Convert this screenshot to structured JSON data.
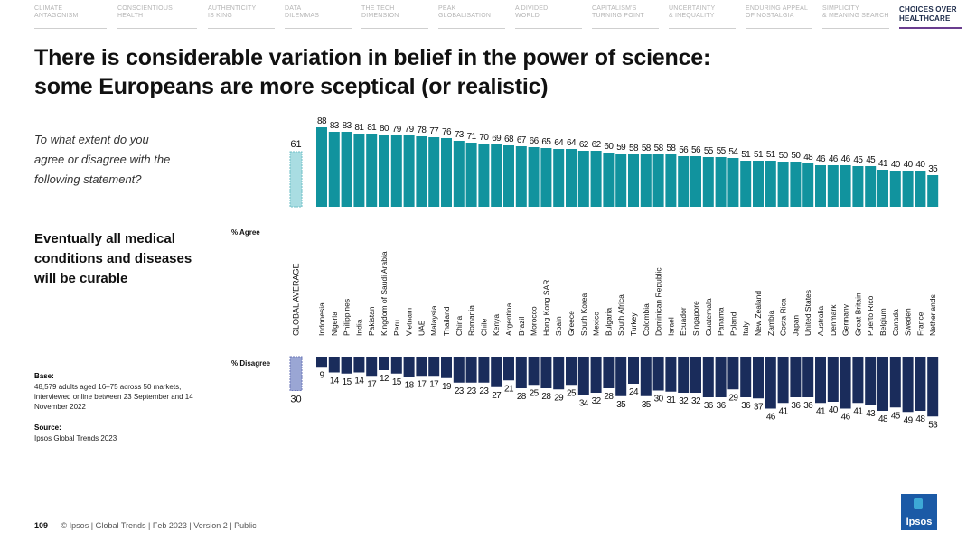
{
  "nav": [
    {
      "line1": "CLIMATE",
      "line2": "ANTAGONISM",
      "active": false
    },
    {
      "line1": "CONSCIENTIOUS",
      "line2": "HEALTH",
      "active": false
    },
    {
      "line1": "AUTHENTICITY",
      "line2": "IS KING",
      "active": false
    },
    {
      "line1": "DATA",
      "line2": "DILEMMAS",
      "active": false
    },
    {
      "line1": "THE TECH",
      "line2": "DIMENSION",
      "active": false
    },
    {
      "line1": "PEAK",
      "line2": "GLOBALISATION",
      "active": false
    },
    {
      "line1": "A DIVIDED",
      "line2": "WORLD",
      "active": false
    },
    {
      "line1": "CAPITALISM'S",
      "line2": "TURNING POINT",
      "active": false
    },
    {
      "line1": "UNCERTAINTY",
      "line2": "& INEQUALITY",
      "active": false
    },
    {
      "line1": "ENDURING APPEAL",
      "line2": "OF NOSTALGIA",
      "active": false
    },
    {
      "line1": "SIMPLICITY",
      "line2": "& MEANING SEARCH",
      "active": false
    },
    {
      "line1": "CHOICES OVER",
      "line2": "HEALTHCARE",
      "active": true
    }
  ],
  "title_line1": "There is considerable variation in belief in the power of science:",
  "title_line2": "some Europeans are more sceptical (or realistic)",
  "question_line1": "To what extent do you",
  "question_line2": "agree or disagree with the",
  "question_line3": "following statement?",
  "statement_line1": "Eventually all medical",
  "statement_line2": "conditions and diseases",
  "statement_line3": "will be curable",
  "base_heading": "Base:",
  "base_line1": "48,579 adults aged 16–75 across 50 markets,",
  "base_line2": "interviewed online between 23 September and 14",
  "base_line3": "November 2022",
  "source_heading": "Source:",
  "source_text": "Ipsos Global Trends 2023",
  "footer_page": "109",
  "footer_text": "© Ipsos | Global Trends | Feb 2023 | Version 2 | Public",
  "logo_text": "Ipsos",
  "colors": {
    "agree": "#11939e",
    "disagree": "#1a2c5b",
    "avg_agree": "#a9dde2",
    "avg_disagree": "#9aa6d4",
    "active_nav_underline": "#6a3d8f",
    "logo_blue": "#1b5aa6"
  },
  "chart_data": {
    "type": "bar",
    "agree_label": "% Agree",
    "disagree_label": "% Disagree",
    "average_label": "GLOBAL AVERAGE",
    "average": {
      "agree": 61,
      "disagree": 30
    },
    "categories": [
      "Indonesia",
      "Nigeria",
      "Philippines",
      "India",
      "Pakistan",
      "Kingdom of Saudi Arabia",
      "Peru",
      "Vietnam",
      "UAE",
      "Malaysia",
      "Thailand",
      "China",
      "Romania",
      "Chile",
      "Kenya",
      "Argentina",
      "Brazil",
      "Morocco",
      "Hong Kong SAR",
      "Spain",
      "Greece",
      "South Korea",
      "Mexico",
      "Bulgaria",
      "South Africa",
      "Turkey",
      "Colombia",
      "Dominican Republic",
      "Israel",
      "Ecuador",
      "Singapore",
      "Guatemala",
      "Panama",
      "Poland",
      "Italy",
      "New Zealand",
      "Zambia",
      "Costa Rica",
      "Japan",
      "United States",
      "Australia",
      "Denmark",
      "Germany",
      "Great Britain",
      "Puerto Rico",
      "Belgium",
      "Canada",
      "Sweden",
      "France",
      "Netherlands"
    ],
    "series": [
      {
        "name": "% Agree",
        "values": [
          88,
          83,
          83,
          81,
          81,
          80,
          79,
          79,
          78,
          77,
          76,
          73,
          71,
          70,
          69,
          68,
          67,
          66,
          65,
          64,
          64,
          62,
          62,
          60,
          59,
          58,
          58,
          58,
          58,
          56,
          56,
          55,
          55,
          54,
          51,
          51,
          51,
          50,
          50,
          48,
          46,
          46,
          46,
          45,
          45,
          41,
          40,
          40,
          40,
          35
        ]
      },
      {
        "name": "% Disagree",
        "values": [
          9,
          14,
          15,
          14,
          17,
          12,
          15,
          18,
          17,
          17,
          19,
          23,
          23,
          23,
          27,
          21,
          28,
          25,
          28,
          29,
          25,
          34,
          32,
          28,
          35,
          24,
          35,
          30,
          31,
          32,
          32,
          36,
          36,
          29,
          36,
          37,
          46,
          41,
          36,
          36,
          41,
          40,
          46,
          41,
          43,
          48,
          45,
          49,
          48,
          53
        ]
      }
    ],
    "ylim": [
      0,
      100
    ],
    "grid": false,
    "legend": "none"
  }
}
